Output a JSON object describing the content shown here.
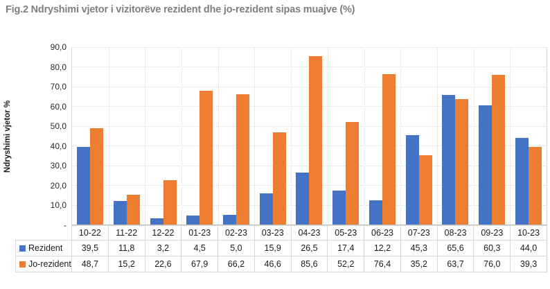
{
  "title": "Fig.2 Ndryshimi vjetor i vizitorëve rezident dhe jo-rezident sipas muajve (%)",
  "chart_data": {
    "type": "bar",
    "title": "Fig.2 Ndryshimi vjetor i vizitorëve rezident dhe jo-rezident sipas muajve (%)",
    "xlabel": "",
    "ylabel": "Ndryshimi vjetor %",
    "ylim": [
      0,
      90
    ],
    "ytick_labels": [
      "90,0",
      "80,0",
      "70,0",
      "60,0",
      "50,0",
      "40,0",
      "30,0",
      "20,0",
      "10,0",
      "-"
    ],
    "grid": true,
    "legend_position": "data-table-left",
    "categories": [
      "10-22",
      "11-22",
      "12-22",
      "01-23",
      "02-23",
      "03-23",
      "04-23",
      "05-23",
      "06-23",
      "07-23",
      "08-23",
      "09-23",
      "10-23"
    ],
    "series": [
      {
        "name": "Rezident",
        "color": "#4472C4",
        "values": [
          39.5,
          11.8,
          3.2,
          4.5,
          5.0,
          15.9,
          26.5,
          17.4,
          12.2,
          45.3,
          65.6,
          60.3,
          44.0
        ],
        "labels": [
          "39,5",
          "11,8",
          "3,2",
          "4,5",
          "5,0",
          "15,9",
          "26,5",
          "17,4",
          "12,2",
          "45,3",
          "65,6",
          "60,3",
          "44,0"
        ]
      },
      {
        "name": "Jo-rezident",
        "color": "#ED7D31",
        "values": [
          48.7,
          15.2,
          22.6,
          67.9,
          66.2,
          46.6,
          85.6,
          52.2,
          76.4,
          35.2,
          63.7,
          76.0,
          39.3
        ],
        "labels": [
          "48,7",
          "15,2",
          "22,6",
          "67,9",
          "66,2",
          "46,6",
          "85,6",
          "52,2",
          "76,4",
          "35,2",
          "63,7",
          "76,0",
          "39,3"
        ]
      }
    ],
    "colors": {
      "rezident": "#4472C4",
      "jo_rezident": "#ED7D31",
      "title_text": "#7F7F7F",
      "gridline": "#D9D9D9",
      "table_border": "#D9D9D9"
    }
  }
}
